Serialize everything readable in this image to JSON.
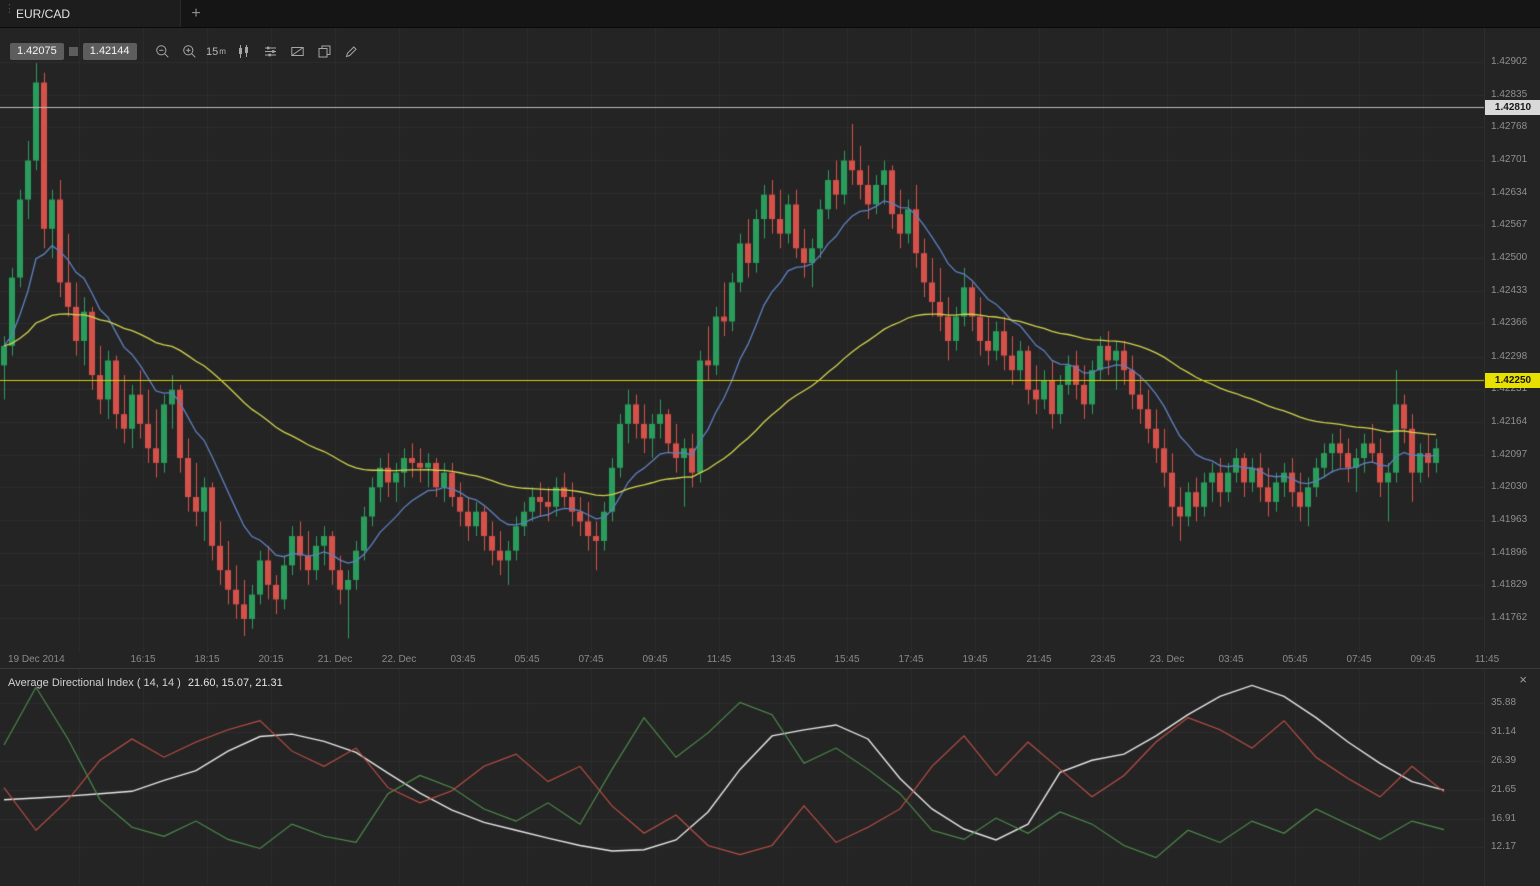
{
  "window": {
    "tab_label": "EUR/CAD",
    "new_tab_label": "+"
  },
  "toolbar": {
    "bid": "1.42075",
    "ask": "1.42144",
    "timeframe": "15",
    "timeframe_unit": "m",
    "icons": [
      "zoom-out-icon",
      "zoom-in-icon",
      "timeframe-selector",
      "candlestick-style-icon",
      "indicators-icon",
      "area-select-icon",
      "duplicate-chart-icon",
      "draw-tools-icon"
    ]
  },
  "chart_data": {
    "type": "candlestick",
    "symbol": "EUR/CAD",
    "timeframe_minutes": 15,
    "colors": {
      "up": "#2a9d5c",
      "down": "#d5514a",
      "grid": "#2d2d2d",
      "bg": "#242424"
    },
    "price_ticks": [
      "1.42902",
      "1.42835",
      "1.42768",
      "1.42701",
      "1.42634",
      "1.42567",
      "1.42500",
      "1.42433",
      "1.42366",
      "1.42298",
      "1.42231",
      "1.42164",
      "1.42097",
      "1.42030",
      "1.41963",
      "1.41896",
      "1.41829",
      "1.41762"
    ],
    "time_ticks": [
      "19 Dec 2014",
      "16:15",
      "18:15",
      "20:15",
      "21. Dec",
      "22. Dec",
      "03:45",
      "05:45",
      "07:45",
      "09:45",
      "11:45",
      "13:45",
      "15:45",
      "17:45",
      "19:45",
      "21:45",
      "23:45",
      "23. Dec",
      "03:45",
      "05:45",
      "07:45",
      "09:45",
      "11:45"
    ],
    "marked_prices": [
      {
        "label": "1.42810",
        "value": 1.4281,
        "bg": "#d9d9d9"
      },
      {
        "label": "1.42250",
        "value": 1.4225,
        "bg": "#e8e000"
      }
    ],
    "hlines": [
      {
        "value": 1.4281,
        "color": "#b9b9b9"
      },
      {
        "value": 1.4225,
        "color": "#d6cd00"
      }
    ],
    "overlays": [
      {
        "name": "ma-fast",
        "type": "ema",
        "period": 12,
        "color": "#5e81c2"
      },
      {
        "name": "ma-slow",
        "type": "ema",
        "period": 55,
        "color": "#d2d24e"
      }
    ],
    "view_price_range": [
      1.41692,
      1.42974
    ],
    "ohlc": [
      [
        1.4228,
        1.4234,
        1.4221,
        1.4232
      ],
      [
        1.4232,
        1.4248,
        1.423,
        1.4246
      ],
      [
        1.4246,
        1.4264,
        1.4244,
        1.4262
      ],
      [
        1.4262,
        1.4274,
        1.4258,
        1.427
      ],
      [
        1.427,
        1.429,
        1.4268,
        1.4286
      ],
      [
        1.4286,
        1.4288,
        1.4252,
        1.4256
      ],
      [
        1.4256,
        1.4264,
        1.425,
        1.4262
      ],
      [
        1.4262,
        1.4266,
        1.4242,
        1.4245
      ],
      [
        1.4245,
        1.4255,
        1.4238,
        1.424
      ],
      [
        1.424,
        1.4245,
        1.423,
        1.4233
      ],
      [
        1.4233,
        1.4242,
        1.4228,
        1.4239
      ],
      [
        1.4239,
        1.424,
        1.4223,
        1.4226
      ],
      [
        1.4226,
        1.4232,
        1.4218,
        1.4221
      ],
      [
        1.4221,
        1.4231,
        1.4217,
        1.4229
      ],
      [
        1.4229,
        1.423,
        1.4215,
        1.4218
      ],
      [
        1.4218,
        1.4226,
        1.4212,
        1.4215
      ],
      [
        1.4215,
        1.4224,
        1.4211,
        1.4222
      ],
      [
        1.4222,
        1.4227,
        1.4213,
        1.4216
      ],
      [
        1.4216,
        1.4223,
        1.4208,
        1.4211
      ],
      [
        1.4211,
        1.4219,
        1.4205,
        1.4208
      ],
      [
        1.4208,
        1.4222,
        1.4206,
        1.422
      ],
      [
        1.422,
        1.4226,
        1.4215,
        1.4223
      ],
      [
        1.4223,
        1.4224,
        1.4206,
        1.4209
      ],
      [
        1.4209,
        1.4213,
        1.4198,
        1.4201
      ],
      [
        1.4201,
        1.4208,
        1.4195,
        1.4198
      ],
      [
        1.4198,
        1.4205,
        1.4192,
        1.4203
      ],
      [
        1.4203,
        1.4204,
        1.4188,
        1.4191
      ],
      [
        1.4191,
        1.4196,
        1.4183,
        1.4186
      ],
      [
        1.4186,
        1.4192,
        1.4179,
        1.4182
      ],
      [
        1.4182,
        1.4187,
        1.4176,
        1.4179
      ],
      [
        1.4179,
        1.4184,
        1.41725,
        1.4176
      ],
      [
        1.4176,
        1.4183,
        1.4174,
        1.4181
      ],
      [
        1.4181,
        1.419,
        1.4179,
        1.4188
      ],
      [
        1.4188,
        1.4191,
        1.418,
        1.4183
      ],
      [
        1.4183,
        1.4185,
        1.4177,
        1.418
      ],
      [
        1.418,
        1.4189,
        1.4178,
        1.4187
      ],
      [
        1.4187,
        1.4195,
        1.4185,
        1.4193
      ],
      [
        1.4193,
        1.4196,
        1.4186,
        1.4189
      ],
      [
        1.4189,
        1.4194,
        1.4183,
        1.4186
      ],
      [
        1.4186,
        1.4193,
        1.4184,
        1.4191
      ],
      [
        1.4191,
        1.4195,
        1.4187,
        1.4193
      ],
      [
        1.4193,
        1.4194,
        1.4183,
        1.4186
      ],
      [
        1.4186,
        1.4189,
        1.4179,
        1.4182
      ],
      [
        1.4182,
        1.4186,
        1.4172,
        1.4184
      ],
      [
        1.4184,
        1.4192,
        1.4182,
        1.419
      ],
      [
        1.419,
        1.4199,
        1.4188,
        1.4197
      ],
      [
        1.4197,
        1.4205,
        1.4195,
        1.4203
      ],
      [
        1.4203,
        1.4209,
        1.42,
        1.4207
      ],
      [
        1.4207,
        1.421,
        1.4201,
        1.4204
      ],
      [
        1.4204,
        1.4208,
        1.42,
        1.4206
      ],
      [
        1.4206,
        1.4211,
        1.4203,
        1.4209
      ],
      [
        1.4209,
        1.4212,
        1.4205,
        1.4208
      ],
      [
        1.4208,
        1.4211,
        1.4204,
        1.4207
      ],
      [
        1.4207,
        1.421,
        1.4203,
        1.4208
      ],
      [
        1.4208,
        1.4209,
        1.4201,
        1.4203
      ],
      [
        1.4203,
        1.4208,
        1.42,
        1.4206
      ],
      [
        1.4206,
        1.4208,
        1.4199,
        1.4201
      ],
      [
        1.4201,
        1.4204,
        1.4195,
        1.4198
      ],
      [
        1.4198,
        1.4201,
        1.4192,
        1.4195
      ],
      [
        1.4195,
        1.42,
        1.4193,
        1.4198
      ],
      [
        1.4198,
        1.4199,
        1.419,
        1.4193
      ],
      [
        1.4193,
        1.4196,
        1.4187,
        1.419
      ],
      [
        1.419,
        1.4194,
        1.4185,
        1.4188
      ],
      [
        1.4188,
        1.4192,
        1.4183,
        1.419
      ],
      [
        1.419,
        1.4197,
        1.4188,
        1.4195
      ],
      [
        1.4195,
        1.42,
        1.4193,
        1.4198
      ],
      [
        1.4198,
        1.4203,
        1.4196,
        1.4201
      ],
      [
        1.4201,
        1.4204,
        1.4197,
        1.42
      ],
      [
        1.42,
        1.4203,
        1.4196,
        1.4199
      ],
      [
        1.4199,
        1.4205,
        1.4197,
        1.4203
      ],
      [
        1.4203,
        1.4206,
        1.4199,
        1.4201
      ],
      [
        1.4201,
        1.4204,
        1.4195,
        1.4198
      ],
      [
        1.4198,
        1.4201,
        1.4193,
        1.4196
      ],
      [
        1.4196,
        1.42,
        1.419,
        1.4193
      ],
      [
        1.4193,
        1.4196,
        1.4186,
        1.4192
      ],
      [
        1.4192,
        1.42,
        1.419,
        1.4198
      ],
      [
        1.4198,
        1.4209,
        1.4196,
        1.4207
      ],
      [
        1.4207,
        1.4218,
        1.4205,
        1.4216
      ],
      [
        1.4216,
        1.4223,
        1.4212,
        1.422
      ],
      [
        1.422,
        1.4222,
        1.4213,
        1.4216
      ],
      [
        1.4216,
        1.422,
        1.421,
        1.4213
      ],
      [
        1.4213,
        1.4218,
        1.4209,
        1.4216
      ],
      [
        1.4216,
        1.4221,
        1.4213,
        1.4218
      ],
      [
        1.4218,
        1.4219,
        1.421,
        1.4212
      ],
      [
        1.4212,
        1.4216,
        1.4206,
        1.4209
      ],
      [
        1.4209,
        1.4213,
        1.4199,
        1.4211
      ],
      [
        1.4211,
        1.4214,
        1.4203,
        1.4206
      ],
      [
        1.4206,
        1.4231,
        1.4204,
        1.4229
      ],
      [
        1.4229,
        1.4236,
        1.4225,
        1.4228
      ],
      [
        1.4228,
        1.424,
        1.4226,
        1.4238
      ],
      [
        1.4238,
        1.4245,
        1.4234,
        1.4237
      ],
      [
        1.4237,
        1.4247,
        1.4235,
        1.4245
      ],
      [
        1.4245,
        1.4255,
        1.4243,
        1.4253
      ],
      [
        1.4253,
        1.4258,
        1.4246,
        1.4249
      ],
      [
        1.4249,
        1.426,
        1.4247,
        1.4258
      ],
      [
        1.4258,
        1.4265,
        1.4254,
        1.4263
      ],
      [
        1.4263,
        1.4266,
        1.4255,
        1.4258
      ],
      [
        1.4258,
        1.4264,
        1.4252,
        1.4255
      ],
      [
        1.4255,
        1.4263,
        1.4253,
        1.4261
      ],
      [
        1.4261,
        1.4264,
        1.425,
        1.4252
      ],
      [
        1.4252,
        1.4256,
        1.4246,
        1.4249
      ],
      [
        1.4249,
        1.4254,
        1.4244,
        1.4252
      ],
      [
        1.4252,
        1.4262,
        1.425,
        1.426
      ],
      [
        1.426,
        1.4268,
        1.4258,
        1.4266
      ],
      [
        1.4266,
        1.427,
        1.426,
        1.4263
      ],
      [
        1.4263,
        1.4272,
        1.4261,
        1.427
      ],
      [
        1.427,
        1.42775,
        1.4265,
        1.4268
      ],
      [
        1.4268,
        1.4273,
        1.4262,
        1.4265
      ],
      [
        1.4265,
        1.4269,
        1.4258,
        1.4261
      ],
      [
        1.4261,
        1.4267,
        1.4259,
        1.4265
      ],
      [
        1.4265,
        1.427,
        1.4261,
        1.4268
      ],
      [
        1.4268,
        1.4269,
        1.4256,
        1.4259
      ],
      [
        1.4259,
        1.4264,
        1.4252,
        1.4255
      ],
      [
        1.4255,
        1.4262,
        1.4253,
        1.426
      ],
      [
        1.426,
        1.4265,
        1.4248,
        1.4251
      ],
      [
        1.4251,
        1.4254,
        1.4242,
        1.4245
      ],
      [
        1.4245,
        1.425,
        1.4238,
        1.4241
      ],
      [
        1.4241,
        1.4248,
        1.4235,
        1.4238
      ],
      [
        1.4238,
        1.4242,
        1.4229,
        1.4233
      ],
      [
        1.4233,
        1.424,
        1.4231,
        1.4238
      ],
      [
        1.4238,
        1.4248,
        1.4236,
        1.4244
      ],
      [
        1.4244,
        1.4245,
        1.4235,
        1.4238
      ],
      [
        1.4238,
        1.4242,
        1.423,
        1.4233
      ],
      [
        1.4233,
        1.4238,
        1.4228,
        1.4231
      ],
      [
        1.4231,
        1.4237,
        1.4229,
        1.4235
      ],
      [
        1.4235,
        1.4238,
        1.4227,
        1.423
      ],
      [
        1.423,
        1.4234,
        1.4224,
        1.4227
      ],
      [
        1.4227,
        1.4233,
        1.4225,
        1.4231
      ],
      [
        1.4231,
        1.4232,
        1.422,
        1.4223
      ],
      [
        1.4223,
        1.4228,
        1.4218,
        1.4221
      ],
      [
        1.4221,
        1.4227,
        1.4219,
        1.4225
      ],
      [
        1.4225,
        1.4229,
        1.4215,
        1.4218
      ],
      [
        1.4218,
        1.4226,
        1.4216,
        1.4224
      ],
      [
        1.4224,
        1.423,
        1.4222,
        1.4228
      ],
      [
        1.4228,
        1.4231,
        1.4221,
        1.4224
      ],
      [
        1.4224,
        1.4228,
        1.4217,
        1.422
      ],
      [
        1.422,
        1.4229,
        1.4218,
        1.4227
      ],
      [
        1.4227,
        1.4234,
        1.4225,
        1.4232
      ],
      [
        1.4232,
        1.4235,
        1.4226,
        1.4229
      ],
      [
        1.4229,
        1.4233,
        1.4223,
        1.4231
      ],
      [
        1.4231,
        1.4233,
        1.4224,
        1.4227
      ],
      [
        1.4227,
        1.423,
        1.4219,
        1.4222
      ],
      [
        1.4222,
        1.4226,
        1.4216,
        1.4219
      ],
      [
        1.4219,
        1.4223,
        1.4212,
        1.4215
      ],
      [
        1.4215,
        1.4219,
        1.4208,
        1.4211
      ],
      [
        1.4211,
        1.4215,
        1.4203,
        1.4206
      ],
      [
        1.4206,
        1.421,
        1.4195,
        1.4199
      ],
      [
        1.4199,
        1.4203,
        1.4192,
        1.4197
      ],
      [
        1.4197,
        1.4204,
        1.4195,
        1.4202
      ],
      [
        1.4202,
        1.4205,
        1.4196,
        1.4199
      ],
      [
        1.4199,
        1.4206,
        1.4197,
        1.4204
      ],
      [
        1.4204,
        1.4208,
        1.42,
        1.4206
      ],
      [
        1.4206,
        1.4209,
        1.4199,
        1.4202
      ],
      [
        1.4202,
        1.4208,
        1.42,
        1.4206
      ],
      [
        1.4206,
        1.4211,
        1.4204,
        1.4209
      ],
      [
        1.4209,
        1.421,
        1.4201,
        1.4204
      ],
      [
        1.4204,
        1.4209,
        1.4202,
        1.4207
      ],
      [
        1.4207,
        1.421,
        1.42,
        1.4203
      ],
      [
        1.4203,
        1.4207,
        1.4197,
        1.42
      ],
      [
        1.42,
        1.4206,
        1.4198,
        1.4204
      ],
      [
        1.4204,
        1.4208,
        1.4201,
        1.4206
      ],
      [
        1.4206,
        1.4209,
        1.4199,
        1.4202
      ],
      [
        1.4202,
        1.4206,
        1.4196,
        1.4199
      ],
      [
        1.4199,
        1.4205,
        1.4195,
        1.4203
      ],
      [
        1.4203,
        1.4209,
        1.4201,
        1.4207
      ],
      [
        1.4207,
        1.4212,
        1.4205,
        1.421
      ],
      [
        1.421,
        1.4214,
        1.4206,
        1.4212
      ],
      [
        1.4212,
        1.4215,
        1.4207,
        1.421
      ],
      [
        1.421,
        1.4213,
        1.4204,
        1.4207
      ],
      [
        1.4207,
        1.4211,
        1.4202,
        1.4209
      ],
      [
        1.4209,
        1.4214,
        1.4206,
        1.4212
      ],
      [
        1.4212,
        1.4216,
        1.4208,
        1.421
      ],
      [
        1.421,
        1.4213,
        1.4201,
        1.4204
      ],
      [
        1.4204,
        1.4208,
        1.4196,
        1.4206
      ],
      [
        1.4206,
        1.4227,
        1.4204,
        1.422
      ],
      [
        1.422,
        1.4222,
        1.4212,
        1.4215
      ],
      [
        1.4215,
        1.4218,
        1.42,
        1.4206
      ],
      [
        1.4206,
        1.4212,
        1.4204,
        1.421
      ],
      [
        1.421,
        1.4214,
        1.4205,
        1.4208
      ],
      [
        1.4208,
        1.4213,
        1.4206,
        1.4211
      ]
    ],
    "indicator": {
      "type": "adx",
      "title": "Average Directional Index",
      "params": "( 14, 14 )",
      "period": 14,
      "values_text": "21.60, 15.07, 21.31",
      "current_values": [
        21.6,
        15.07,
        21.31
      ],
      "close_label": "×",
      "ticks": [
        "35.88",
        "31.14",
        "26.39",
        "21.65",
        "16.91",
        "12.17"
      ],
      "view_range": [
        6.0,
        41.5
      ],
      "sample_step_candles": 4,
      "series": [
        {
          "name": "ADX",
          "color": "#e6e6e6",
          "values": [
            20.0,
            20.3,
            20.6,
            21.0,
            21.4,
            23.2,
            24.8,
            28.0,
            30.4,
            30.8,
            29.6,
            27.8,
            24.4,
            21.1,
            18.3,
            16.3,
            15.0,
            13.7,
            12.5,
            11.6,
            11.8,
            13.4,
            18.0,
            25.0,
            30.5,
            31.5,
            32.3,
            30.0,
            23.5,
            18.5,
            15.2,
            13.4,
            16.0,
            24.5,
            26.5,
            27.5,
            30.5,
            34.0,
            37.0,
            38.8,
            37.0,
            33.5,
            29.5,
            26.0,
            23.0,
            21.6
          ]
        },
        {
          "name": "+DI",
          "color": "#4d8f4d",
          "values": [
            29.0,
            38.5,
            30.0,
            20.0,
            15.5,
            14.0,
            16.5,
            13.5,
            12.0,
            16.0,
            14.0,
            13.0,
            21.0,
            24.0,
            22.0,
            18.5,
            16.5,
            19.5,
            16.0,
            25.0,
            33.5,
            27.0,
            31.0,
            36.0,
            34.0,
            26.0,
            28.5,
            25.0,
            21.0,
            15.0,
            13.5,
            17.0,
            14.5,
            18.0,
            16.0,
            12.5,
            10.5,
            15.0,
            13.0,
            16.5,
            14.5,
            18.5,
            16.0,
            13.5,
            16.5,
            15.1
          ]
        },
        {
          "name": "-DI",
          "color": "#bf4f46",
          "values": [
            22.0,
            15.0,
            20.0,
            26.5,
            30.0,
            27.0,
            29.5,
            31.5,
            33.0,
            28.0,
            25.5,
            28.5,
            22.0,
            19.5,
            21.5,
            25.5,
            27.5,
            23.0,
            25.5,
            19.0,
            14.5,
            17.5,
            12.5,
            11.0,
            12.5,
            19.0,
            13.0,
            15.5,
            18.5,
            25.5,
            30.5,
            24.0,
            29.5,
            25.0,
            20.5,
            24.0,
            29.5,
            33.5,
            31.5,
            28.5,
            33.0,
            27.0,
            23.5,
            20.5,
            25.5,
            21.3
          ]
        }
      ]
    }
  }
}
